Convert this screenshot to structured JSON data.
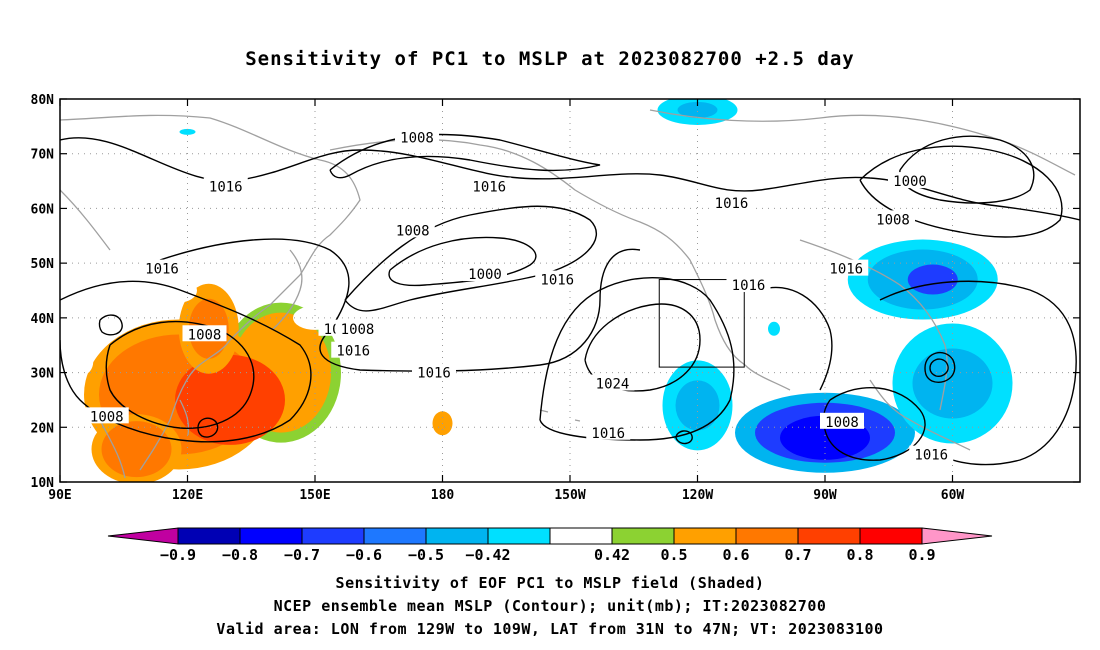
{
  "title": "Sensitivity of PC1 to MSLP at 2023082700 +2.5 day",
  "lat_labels": [
    "80N",
    "70N",
    "60N",
    "50N",
    "40N",
    "30N",
    "20N",
    "10N"
  ],
  "lon_labels": [
    "90E",
    "120E",
    "150E",
    "180",
    "150W",
    "120W",
    "90W",
    "60W"
  ],
  "contour_labels": [
    {
      "text": "1008",
      "lon": 174,
      "lat": 73
    },
    {
      "text": "1016",
      "lon": 129,
      "lat": 64
    },
    {
      "text": "1016",
      "lon": 191,
      "lat": 64
    },
    {
      "text": "1016",
      "lon": 248,
      "lat": 61
    },
    {
      "text": "1000",
      "lon": 290,
      "lat": 65
    },
    {
      "text": "1008",
      "lon": 286,
      "lat": 58
    },
    {
      "text": "1008",
      "lon": 173,
      "lat": 56
    },
    {
      "text": "1000",
      "lon": 190,
      "lat": 48
    },
    {
      "text": "1016",
      "lon": 207,
      "lat": 47
    },
    {
      "text": "1016",
      "lon": 114,
      "lat": 49
    },
    {
      "text": "1016",
      "lon": 275,
      "lat": 49
    },
    {
      "text": "1016",
      "lon": 252,
      "lat": 46
    },
    {
      "text": "1008",
      "lon": 124,
      "lat": 37
    },
    {
      "text": "1016",
      "lon": 156,
      "lat": 38
    },
    {
      "text": "1008",
      "lon": 160,
      "lat": 38
    },
    {
      "text": "1016",
      "lon": 159,
      "lat": 34
    },
    {
      "text": "1016",
      "lon": 178,
      "lat": 30
    },
    {
      "text": "1024",
      "lon": 220,
      "lat": 28
    },
    {
      "text": "1016",
      "lon": 219,
      "lat": 19
    },
    {
      "text": "1008",
      "lon": 274,
      "lat": 21
    },
    {
      "text": "1016",
      "lon": 295,
      "lat": 15
    },
    {
      "text": "1008",
      "lon": 101,
      "lat": 22
    }
  ],
  "colorbar": {
    "tick_labels": [
      "-0.9",
      "-0.8",
      "-0.7",
      "-0.6",
      "-0.5",
      "-0.42",
      "0.42",
      "0.5",
      "0.6",
      "0.7",
      "0.8",
      "0.9"
    ],
    "colors": [
      "#c000a0",
      "#0000b4",
      "#0000ff",
      "#1e3cff",
      "#1e78ff",
      "#00b4f0",
      "#00e0ff",
      "#ffffff",
      "#8cd232",
      "#ffa000",
      "#ff7800",
      "#ff4000",
      "#ff0000",
      "#ff96c8"
    ]
  },
  "captions": [
    "Sensitivity of EOF PC1 to MSLP field (Shaded)",
    "NCEP ensemble mean MSLP (Contour); unit(mb); IT:2023082700",
    "Valid area: LON from 129W to 109W, LAT from 31N to 47N; VT: 2023083100"
  ],
  "valid_box": {
    "lon_min": 231,
    "lon_max": 251,
    "lat_min": 31,
    "lat_max": 47
  },
  "shading": {
    "positive": [
      {
        "lon": 118,
        "lat": 26,
        "value": 0.75
      },
      {
        "lon": 130,
        "lat": 25,
        "value": 0.8
      },
      {
        "lon": 108,
        "lat": 16,
        "value": 0.7
      },
      {
        "lon": 142,
        "lat": 30,
        "value": 0.6
      },
      {
        "lon": 125,
        "lat": 38,
        "value": 0.6
      },
      {
        "lon": 180,
        "lat": 20,
        "value": 0.5
      }
    ],
    "negative": [
      {
        "lon": 240,
        "lat": 24,
        "value": -0.5
      },
      {
        "lon": 270,
        "lat": 19,
        "value": -0.75
      },
      {
        "lon": 293,
        "lat": 47,
        "value": -0.6
      },
      {
        "lon": 300,
        "lat": 28,
        "value": -0.5
      },
      {
        "lon": 240,
        "lat": 78,
        "value": -0.5
      }
    ]
  }
}
